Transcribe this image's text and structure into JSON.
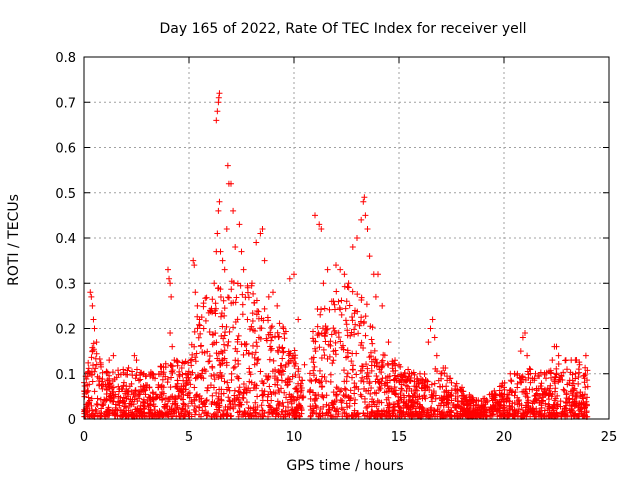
{
  "chart_data": {
    "type": "scatter",
    "title": "Day 165 of 2022, Rate Of TEC Index for receiver yell",
    "xlabel": "GPS time / hours",
    "ylabel": "ROTI / TECUs",
    "xlim": [
      0,
      25
    ],
    "ylim": [
      0,
      0.8
    ],
    "xticks": [
      0,
      5,
      10,
      15,
      20,
      25
    ],
    "yticks": [
      0,
      0.1,
      0.2,
      0.3,
      0.4,
      0.5,
      0.6,
      0.7,
      0.8
    ],
    "xtick_labels": [
      "0",
      "5",
      "10",
      "15",
      "20",
      "25"
    ],
    "ytick_labels": [
      "0",
      "0.1",
      "0.2",
      "0.3",
      "0.4",
      "0.5",
      "0.6",
      "0.7",
      "0.8"
    ],
    "grid": true,
    "marker": "+",
    "color": "#ff0000",
    "baseline_envelope": [
      [
        0,
        0.09
      ],
      [
        0.5,
        0.17
      ],
      [
        1,
        0.1
      ],
      [
        2,
        0.11
      ],
      [
        3,
        0.1
      ],
      [
        4,
        0.12
      ],
      [
        5,
        0.13
      ],
      [
        5.5,
        0.25
      ],
      [
        6,
        0.28
      ],
      [
        6.5,
        0.3
      ],
      [
        7,
        0.3
      ],
      [
        8,
        0.3
      ],
      [
        9,
        0.22
      ],
      [
        9.5,
        0.2
      ],
      [
        10,
        0.16
      ],
      [
        10.5,
        0.06
      ],
      [
        11,
        0.25
      ],
      [
        12,
        0.28
      ],
      [
        13,
        0.3
      ],
      [
        13.5,
        0.25
      ],
      [
        14,
        0.15
      ],
      [
        15,
        0.12
      ],
      [
        16,
        0.09
      ],
      [
        17,
        0.12
      ],
      [
        18,
        0.06
      ],
      [
        19,
        0.04
      ],
      [
        20,
        0.08
      ],
      [
        21,
        0.12
      ],
      [
        22,
        0.1
      ],
      [
        23,
        0.13
      ],
      [
        24,
        0.12
      ]
    ],
    "points": [
      [
        0.3,
        0.28
      ],
      [
        0.35,
        0.27
      ],
      [
        0.4,
        0.25
      ],
      [
        0.45,
        0.22
      ],
      [
        0.5,
        0.2
      ],
      [
        0.6,
        0.17
      ],
      [
        0.8,
        0.12
      ],
      [
        1.2,
        0.13
      ],
      [
        1.4,
        0.14
      ],
      [
        2.4,
        0.14
      ],
      [
        2.5,
        0.13
      ],
      [
        3.2,
        0.1
      ],
      [
        4.0,
        0.33
      ],
      [
        4.05,
        0.31
      ],
      [
        4.1,
        0.3
      ],
      [
        4.15,
        0.27
      ],
      [
        4.1,
        0.19
      ],
      [
        4.2,
        0.16
      ],
      [
        4.3,
        0.13
      ],
      [
        5.2,
        0.35
      ],
      [
        5.25,
        0.34
      ],
      [
        5.3,
        0.28
      ],
      [
        5.4,
        0.25
      ],
      [
        5.5,
        0.22
      ],
      [
        5.7,
        0.2
      ],
      [
        6.0,
        0.24
      ],
      [
        6.2,
        0.3
      ],
      [
        6.3,
        0.37
      ],
      [
        6.35,
        0.41
      ],
      [
        6.4,
        0.46
      ],
      [
        6.45,
        0.48
      ],
      [
        6.5,
        0.37
      ],
      [
        6.3,
        0.66
      ],
      [
        6.35,
        0.68
      ],
      [
        6.4,
        0.7
      ],
      [
        6.42,
        0.71
      ],
      [
        6.45,
        0.72
      ],
      [
        6.6,
        0.35
      ],
      [
        6.7,
        0.33
      ],
      [
        6.8,
        0.42
      ],
      [
        6.9,
        0.52
      ],
      [
        7.0,
        0.52
      ],
      [
        6.85,
        0.56
      ],
      [
        7.1,
        0.46
      ],
      [
        7.2,
        0.38
      ],
      [
        7.4,
        0.43
      ],
      [
        7.5,
        0.37
      ],
      [
        7.6,
        0.33
      ],
      [
        7.8,
        0.29
      ],
      [
        8.0,
        0.3
      ],
      [
        8.2,
        0.39
      ],
      [
        8.4,
        0.41
      ],
      [
        8.5,
        0.42
      ],
      [
        8.6,
        0.35
      ],
      [
        8.8,
        0.27
      ],
      [
        9.0,
        0.28
      ],
      [
        9.2,
        0.25
      ],
      [
        9.5,
        0.2
      ],
      [
        9.8,
        0.31
      ],
      [
        10.0,
        0.32
      ],
      [
        10.2,
        0.22
      ],
      [
        10.5,
        0.12
      ],
      [
        11.0,
        0.45
      ],
      [
        11.2,
        0.43
      ],
      [
        11.3,
        0.42
      ],
      [
        11.4,
        0.3
      ],
      [
        11.6,
        0.33
      ],
      [
        11.8,
        0.26
      ],
      [
        12.0,
        0.34
      ],
      [
        12.2,
        0.33
      ],
      [
        12.4,
        0.32
      ],
      [
        12.6,
        0.3
      ],
      [
        12.8,
        0.38
      ],
      [
        13.0,
        0.4
      ],
      [
        13.2,
        0.44
      ],
      [
        13.3,
        0.48
      ],
      [
        13.35,
        0.49
      ],
      [
        13.4,
        0.45
      ],
      [
        13.5,
        0.42
      ],
      [
        13.6,
        0.36
      ],
      [
        13.8,
        0.32
      ],
      [
        13.9,
        0.27
      ],
      [
        14.0,
        0.32
      ],
      [
        14.2,
        0.25
      ],
      [
        14.5,
        0.17
      ],
      [
        15.0,
        0.12
      ],
      [
        15.5,
        0.1
      ],
      [
        16.0,
        0.1
      ],
      [
        16.4,
        0.17
      ],
      [
        16.5,
        0.2
      ],
      [
        16.6,
        0.22
      ],
      [
        16.7,
        0.18
      ],
      [
        16.8,
        0.14
      ],
      [
        17.0,
        0.1
      ],
      [
        17.5,
        0.08
      ],
      [
        18.0,
        0.07
      ],
      [
        19.5,
        0.05
      ],
      [
        20.0,
        0.07
      ],
      [
        20.3,
        0.1
      ],
      [
        20.5,
        0.1
      ],
      [
        20.8,
        0.15
      ],
      [
        20.9,
        0.18
      ],
      [
        21.0,
        0.19
      ],
      [
        21.1,
        0.14
      ],
      [
        21.5,
        0.1
      ],
      [
        22.0,
        0.09
      ],
      [
        22.3,
        0.13
      ],
      [
        22.4,
        0.16
      ],
      [
        22.5,
        0.16
      ],
      [
        22.6,
        0.14
      ],
      [
        23.0,
        0.11
      ],
      [
        23.2,
        0.13
      ],
      [
        23.4,
        0.13
      ],
      [
        23.6,
        0.12
      ],
      [
        23.9,
        0.14
      ]
    ]
  }
}
